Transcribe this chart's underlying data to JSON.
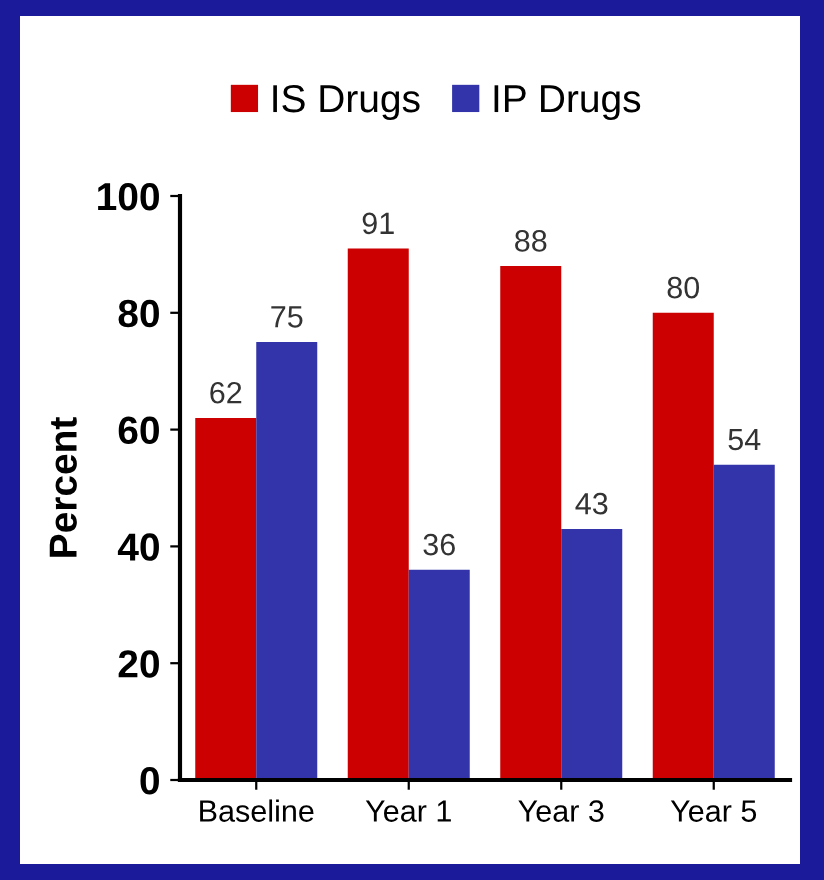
{
  "chart_data": {
    "type": "bar",
    "ylabel": "Percent",
    "categories": [
      "Baseline",
      "Year 1",
      "Year 3",
      "Year 5"
    ],
    "series": [
      {
        "name": "IS Drugs",
        "color": "#cc0000",
        "values": [
          62,
          91,
          88,
          80
        ]
      },
      {
        "name": "IP Drugs",
        "color": "#3333aa",
        "values": [
          75,
          36,
          43,
          54
        ]
      }
    ],
    "ylim": [
      0,
      100
    ],
    "yticks": [
      0,
      20,
      40,
      60,
      80,
      100
    ],
    "data_labels": true,
    "legend": "top",
    "grid": false
  }
}
